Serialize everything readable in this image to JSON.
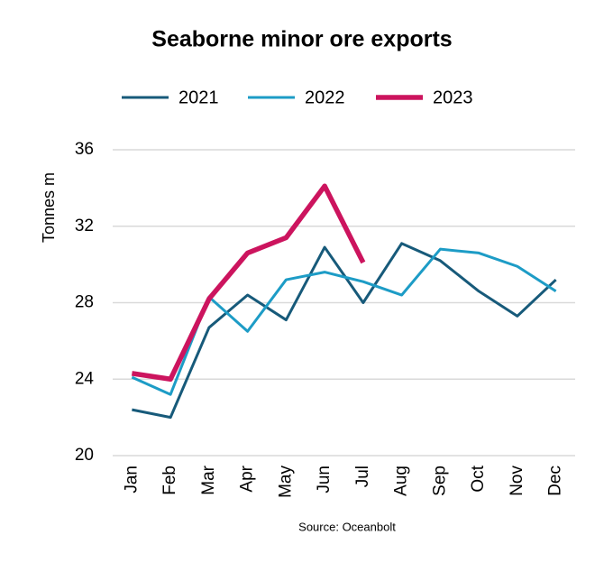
{
  "chart_data": {
    "type": "line",
    "title": "Seaborne minor ore exports",
    "y_label": "Tonnes m",
    "source": "Source: Oceanbolt",
    "categories": [
      "Jan",
      "Feb",
      "Mar",
      "Apr",
      "May",
      "Jun",
      "Jul",
      "Aug",
      "Sep",
      "Oct",
      "Nov",
      "Dec"
    ],
    "series": [
      {
        "name": "2021",
        "color": "#175a7a",
        "values": [
          22.4,
          22.0,
          26.7,
          28.4,
          27.1,
          30.9,
          28.0,
          31.1,
          30.2,
          28.6,
          27.3,
          29.2
        ]
      },
      {
        "name": "2022",
        "color": "#1d9cc6",
        "values": [
          24.1,
          23.2,
          28.3,
          26.5,
          29.2,
          29.6,
          29.1,
          28.4,
          30.8,
          30.6,
          29.9,
          28.6
        ]
      },
      {
        "name": "2023",
        "color": "#cc145e",
        "values": [
          24.3,
          24.0,
          28.2,
          30.6,
          31.4,
          34.1,
          30.1,
          null,
          null,
          null,
          null,
          null
        ]
      }
    ],
    "ylim": [
      20,
      36
    ],
    "yticks": [
      20,
      24,
      28,
      32,
      36
    ],
    "grid": true,
    "legend": "top"
  }
}
